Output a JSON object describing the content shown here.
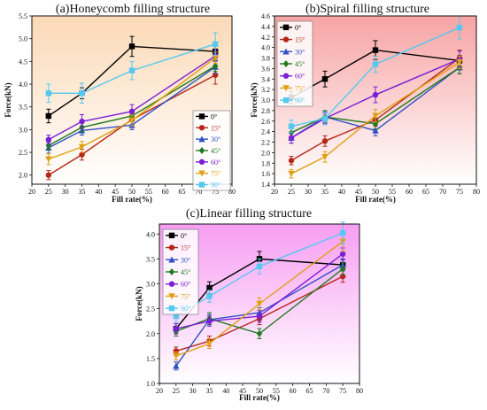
{
  "figure": {
    "legend_entries": [
      "0°",
      "15°",
      "30°",
      "45°",
      "60°",
      "75°",
      "90°"
    ],
    "series_colors": [
      "#000000",
      "#b5271a",
      "#2f50c8",
      "#1e7a1e",
      "#7a1fd6",
      "#e0a010",
      "#55c8f0"
    ]
  },
  "chart_data": [
    {
      "type": "line",
      "title": "(a)Honeycomb filling structure",
      "xlabel": "Fill rate(%)",
      "ylabel": "Force(kN)",
      "xlim": [
        20,
        80
      ],
      "ylim": [
        1.8,
        5.5
      ],
      "xticks": [
        20,
        25,
        30,
        35,
        40,
        45,
        50,
        55,
        60,
        65,
        70,
        75,
        80
      ],
      "yticks": [
        2.0,
        2.5,
        3.0,
        3.5,
        4.0,
        4.5,
        5.0,
        5.5
      ],
      "background": "orange-gradient",
      "legend_position": "right-middle",
      "x": [
        25,
        35,
        50,
        75
      ],
      "series": [
        {
          "name": "0°",
          "values": [
            3.3,
            3.8,
            4.83,
            4.72
          ],
          "errors": [
            0.15,
            0.12,
            0.22,
            0.15
          ]
        },
        {
          "name": "15°",
          "values": [
            2.0,
            2.45,
            3.22,
            4.2
          ],
          "errors": [
            0.1,
            0.12,
            0.12,
            0.2
          ]
        },
        {
          "name": "30°",
          "values": [
            2.6,
            2.98,
            3.1,
            4.38
          ],
          "errors": [
            0.12,
            0.1,
            0.1,
            0.15
          ]
        },
        {
          "name": "45°",
          "values": [
            2.65,
            3.05,
            3.3,
            4.4
          ],
          "errors": [
            0.1,
            0.1,
            0.12,
            0.12
          ]
        },
        {
          "name": "60°",
          "values": [
            2.78,
            3.18,
            3.4,
            4.62
          ],
          "errors": [
            0.1,
            0.15,
            0.15,
            0.12
          ]
        },
        {
          "name": "75°",
          "values": [
            2.35,
            2.62,
            3.2,
            4.58
          ],
          "errors": [
            0.12,
            0.12,
            0.12,
            0.12
          ]
        },
        {
          "name": "90°",
          "values": [
            3.8,
            3.8,
            4.3,
            4.88
          ],
          "errors": [
            0.2,
            0.22,
            0.2,
            0.25
          ]
        }
      ]
    },
    {
      "type": "line",
      "title": "(b)Spiral filling structure",
      "xlabel": "Fill rate(%)",
      "ylabel": "Force(kN)",
      "xlim": [
        20,
        80
      ],
      "ylim": [
        1.4,
        4.6
      ],
      "xticks": [
        20,
        25,
        30,
        35,
        40,
        45,
        50,
        55,
        60,
        65,
        70,
        75,
        80
      ],
      "yticks": [
        1.4,
        1.6,
        1.8,
        2.0,
        2.2,
        2.4,
        2.6,
        2.8,
        3.0,
        3.2,
        3.4,
        3.6,
        3.8,
        4.0,
        4.2,
        4.4,
        4.6
      ],
      "background": "pink-gradient",
      "legend_position": "top-left",
      "x": [
        25,
        35,
        50,
        75
      ],
      "series": [
        {
          "name": "0°",
          "values": [
            3.05,
            3.4,
            3.95,
            3.75
          ],
          "errors": [
            0.12,
            0.15,
            0.18,
            0.1
          ]
        },
        {
          "name": "15°",
          "values": [
            1.85,
            2.22,
            2.62,
            3.8
          ],
          "errors": [
            0.08,
            0.1,
            0.12,
            0.15
          ]
        },
        {
          "name": "30°",
          "values": [
            2.28,
            2.68,
            2.42,
            3.62
          ],
          "errors": [
            0.1,
            0.1,
            0.1,
            0.12
          ]
        },
        {
          "name": "45°",
          "values": [
            2.38,
            2.68,
            2.55,
            3.62
          ],
          "errors": [
            0.1,
            0.12,
            0.1,
            0.12
          ]
        },
        {
          "name": "60°",
          "values": [
            2.28,
            2.65,
            3.1,
            3.78
          ],
          "errors": [
            0.1,
            0.1,
            0.15,
            0.15
          ]
        },
        {
          "name": "75°",
          "values": [
            1.6,
            1.92,
            2.7,
            3.72
          ],
          "errors": [
            0.08,
            0.1,
            0.12,
            0.12
          ]
        },
        {
          "name": "90°",
          "values": [
            2.5,
            2.65,
            3.68,
            4.38
          ],
          "errors": [
            0.12,
            0.12,
            0.15,
            0.22
          ]
        }
      ]
    },
    {
      "type": "line",
      "title": "(c)Linear filling structure",
      "xlabel": "Fill rate(%)",
      "ylabel": "Force(kN)",
      "xlim": [
        20,
        80
      ],
      "ylim": [
        1.0,
        4.2
      ],
      "xticks": [
        20,
        25,
        30,
        35,
        40,
        45,
        50,
        55,
        60,
        65,
        70,
        75,
        80
      ],
      "yticks": [
        1.0,
        1.5,
        2.0,
        2.5,
        3.0,
        3.5,
        4.0
      ],
      "background": "magenta-gradient",
      "legend_position": "top-left",
      "x": [
        25,
        35,
        50,
        75
      ],
      "series": [
        {
          "name": "0°",
          "values": [
            2.1,
            2.92,
            3.5,
            3.38
          ],
          "errors": [
            0.1,
            0.12,
            0.15,
            0.1
          ]
        },
        {
          "name": "15°",
          "values": [
            1.65,
            1.85,
            2.3,
            3.15
          ],
          "errors": [
            0.08,
            0.1,
            0.12,
            0.12
          ]
        },
        {
          "name": "30°",
          "values": [
            1.35,
            2.28,
            2.42,
            3.38
          ],
          "errors": [
            0.08,
            0.1,
            0.1,
            0.12
          ]
        },
        {
          "name": "45°",
          "values": [
            2.05,
            2.3,
            2.0,
            3.3
          ],
          "errors": [
            0.1,
            0.12,
            0.1,
            0.12
          ]
        },
        {
          "name": "60°",
          "values": [
            2.1,
            2.25,
            2.35,
            3.6
          ],
          "errors": [
            0.1,
            0.1,
            0.12,
            0.12
          ]
        },
        {
          "name": "75°",
          "values": [
            1.55,
            1.8,
            2.6,
            3.85
          ],
          "errors": [
            0.08,
            0.1,
            0.12,
            0.2
          ]
        },
        {
          "name": "90°",
          "values": [
            2.35,
            2.75,
            3.35,
            4.02
          ],
          "errors": [
            0.12,
            0.12,
            0.15,
            0.22
          ]
        }
      ]
    }
  ]
}
